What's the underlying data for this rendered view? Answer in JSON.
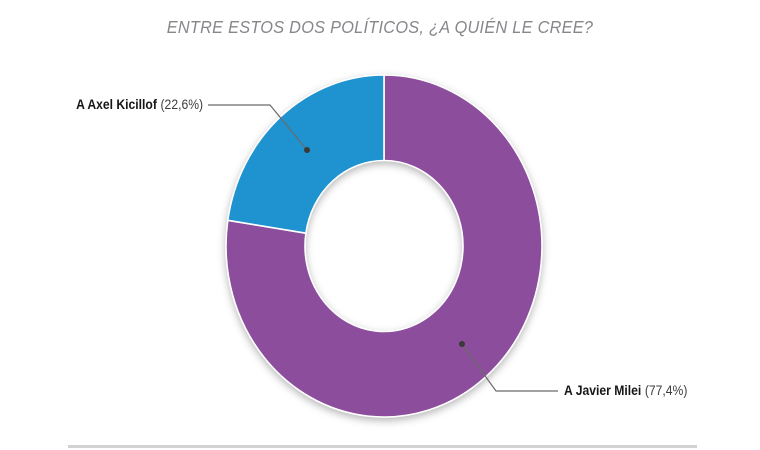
{
  "chart_data": {
    "type": "pie",
    "title": "ENTRE ESTOS DOS POLÍTICOS, ¿A QUIÉN LE CREE?",
    "unit": "%",
    "start_angle_deg": 0,
    "direction": "clockwise",
    "donut_hole_ratio": 0.5,
    "legend_position": "callouts",
    "slices": [
      {
        "label": "A Javier Milei",
        "value": 77.4,
        "value_display": "77,4%",
        "color": "#8c4d9c"
      },
      {
        "label": "A Axel Kicillof",
        "value": 22.6,
        "value_display": "22,6%",
        "color": "#1e93d0"
      }
    ]
  },
  "callouts": {
    "kicillof": {
      "name": "A Axel Kicillof",
      "pct": "(22,6%)"
    },
    "milei": {
      "name": "A Javier Milei",
      "pct": "(77,4%)"
    }
  }
}
